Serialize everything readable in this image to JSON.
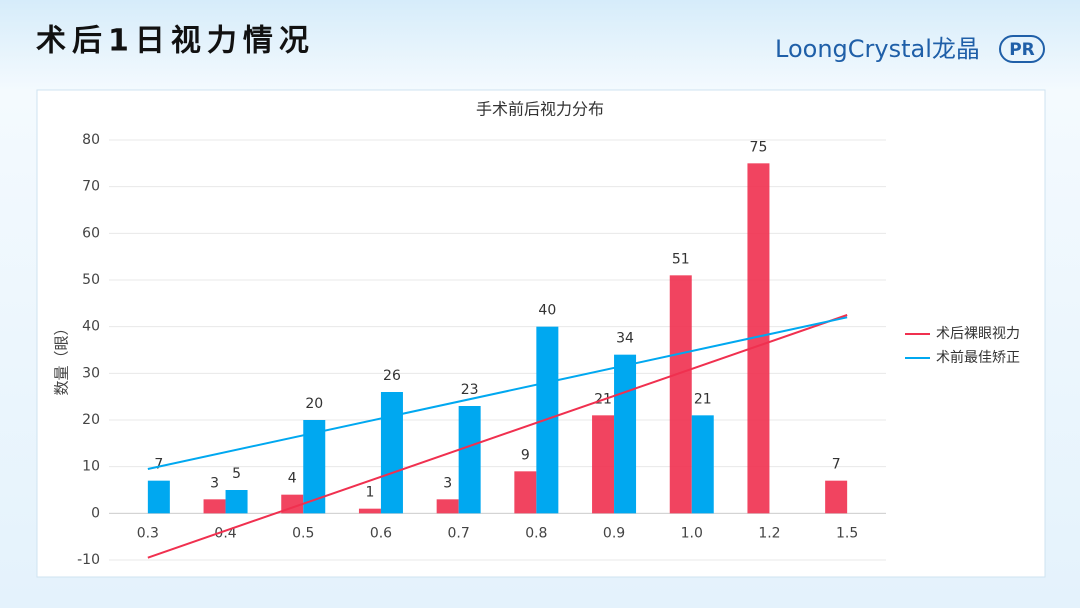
{
  "slide_title": "术后1日视力情况",
  "logo": {
    "brand": "LoongCrystal龙晶",
    "badge": "PR"
  },
  "chart_data": {
    "type": "bar",
    "title": "手术前后视力分布",
    "y_label": "数量（眼）",
    "categories": [
      "0.3",
      "0.4",
      "0.5",
      "0.6",
      "0.7",
      "0.8",
      "0.9",
      "1.0",
      "1.2",
      "1.5"
    ],
    "series": [
      {
        "name": "术后裸眼视力",
        "color": "#f0304f",
        "values": [
          null,
          3,
          4,
          1,
          3,
          9,
          21,
          51,
          75,
          7
        ],
        "trend": [
          -9.5,
          42.5
        ]
      },
      {
        "name": "术前最佳矫正",
        "color": "#00a8f0",
        "values": [
          7,
          5,
          20,
          26,
          23,
          40,
          34,
          21,
          null,
          null
        ],
        "trend": [
          9.5,
          42
        ]
      }
    ],
    "ylim": [
      -10,
      80
    ],
    "yticks": [
      -10,
      0,
      10,
      20,
      30,
      40,
      50,
      60,
      70,
      80
    ],
    "grid": true,
    "legend": "right"
  }
}
